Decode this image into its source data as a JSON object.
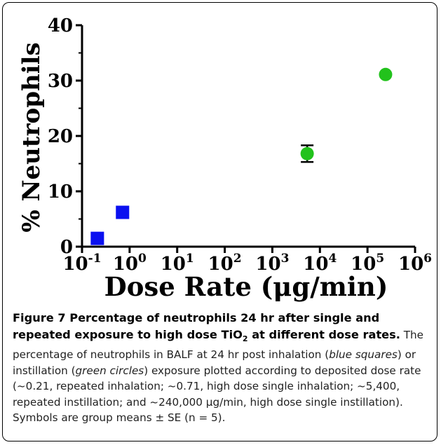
{
  "chart_data": {
    "type": "scatter",
    "xlabel": "Dose Rate (μg/min)",
    "ylabel": "% Neutrophils",
    "xscale": "log",
    "xlim": [
      0.1,
      1000000
    ],
    "ylim": [
      0,
      40
    ],
    "x_tick_exponents": [
      "-1",
      "0",
      "1",
      "2",
      "3",
      "4",
      "5",
      "6"
    ],
    "y_ticks": [
      "0",
      "10",
      "20",
      "30",
      "40"
    ],
    "grid": false,
    "series": [
      {
        "marker": "square",
        "color": "#0a10f0",
        "points": [
          {
            "x": 0.21,
            "y": 1.5,
            "err": 0
          },
          {
            "x": 0.71,
            "y": 6.2,
            "err": 0
          }
        ]
      },
      {
        "marker": "circle",
        "color": "#22c21c",
        "points": [
          {
            "x": 5400,
            "y": 16.8,
            "err": 1.5
          },
          {
            "x": 240000,
            "y": 31.1,
            "err": 0
          }
        ]
      }
    ]
  },
  "caption": {
    "title_main": "Figure 7 Percentage of neutrophils 24 hr after single and repeated exposure to high dose TiO",
    "title_sub": "2",
    "title_end": " at different dose rates.",
    "body_1": " The percentage of neutrophils in BALF at 24 hr post inhalation (",
    "em_1": "blue squares",
    "body_2": ") or instillation (",
    "em_2": "green circles",
    "body_3": ") exposure plotted according to deposited dose rate (~0.21, repeated inhalation; ~0.71, high dose single inhalation; ~5,400, repeated instillation; and ~240,000 μg/min, high dose single instillation). Symbols are group means ± SE (n = 5)."
  }
}
